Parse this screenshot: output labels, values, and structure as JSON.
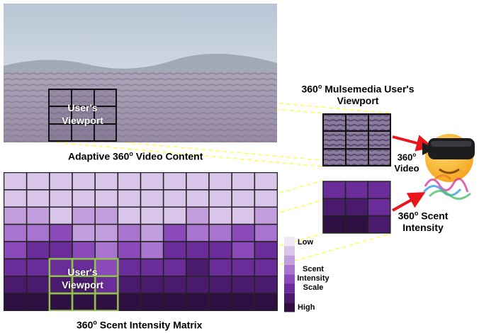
{
  "video_panel": {
    "caption_pre": "Adaptive 360",
    "caption_sup": "o",
    "caption_post": " Video Content",
    "viewport_line1": "User's",
    "viewport_line2": "Viewport"
  },
  "user_viewport": {
    "title_pre": "360",
    "title_sup": "o",
    "title_post": " Mulsemedia User's",
    "title_line2": "Viewport"
  },
  "video_output": {
    "label_line1": "360",
    "label_sup": "o",
    "label_line2": "Video"
  },
  "scent_output": {
    "label_line1_pre": "360",
    "label_sup": "o",
    "label_line1_post": " Scent",
    "label_line2": "Intensity"
  },
  "scent_matrix": {
    "caption_pre": "360",
    "caption_sup": "o",
    "caption_post": " Scent Intensity Matrix",
    "viewport_line1": "User's",
    "viewport_line2": "Viewport",
    "rows": [
      [
        1,
        1,
        1,
        1,
        1,
        1,
        1,
        1,
        1,
        1,
        1,
        1
      ],
      [
        1,
        1,
        1,
        1,
        1,
        1,
        1,
        1,
        1,
        1,
        1,
        1
      ],
      [
        2,
        2,
        1,
        2,
        2,
        1,
        1,
        1,
        2,
        1,
        1,
        2
      ],
      [
        3,
        3,
        4,
        2,
        2,
        3,
        2,
        4,
        3,
        3,
        4,
        3
      ],
      [
        4,
        5,
        5,
        4,
        3,
        4,
        3,
        5,
        5,
        5,
        4,
        5
      ],
      [
        5,
        5,
        5,
        5,
        4,
        5,
        5,
        5,
        6,
        5,
        5,
        5
      ],
      [
        6,
        6,
        6,
        6,
        5,
        6,
        6,
        6,
        6,
        6,
        6,
        6
      ],
      [
        7,
        7,
        7,
        7,
        7,
        7,
        7,
        7,
        7,
        7,
        7,
        7
      ]
    ]
  },
  "scent_zoom": {
    "rows": [
      [
        5,
        5,
        5
      ],
      [
        6,
        6,
        5
      ],
      [
        7,
        7,
        6
      ]
    ]
  },
  "legend": {
    "low": "Low",
    "mid_line1": "Scent",
    "mid_line2": "Intensity",
    "mid_line3": "Scale",
    "high": "High",
    "scale_colors": [
      "#efe8f5",
      "#d9c4ea",
      "#c29fdc",
      "#a874cf",
      "#8a4ab9",
      "#6a2c98",
      "#4a1a6c",
      "#2e0f42"
    ]
  },
  "colors": {
    "grid_line": "#222222",
    "viewport_green": "#8fc24a",
    "dashed_yellow": "#ffff33",
    "arrow_red": "#e8151b"
  },
  "icons": {
    "vr_user": "vr-headset-emoji-icon",
    "scent": "scent-smoke-icon"
  }
}
